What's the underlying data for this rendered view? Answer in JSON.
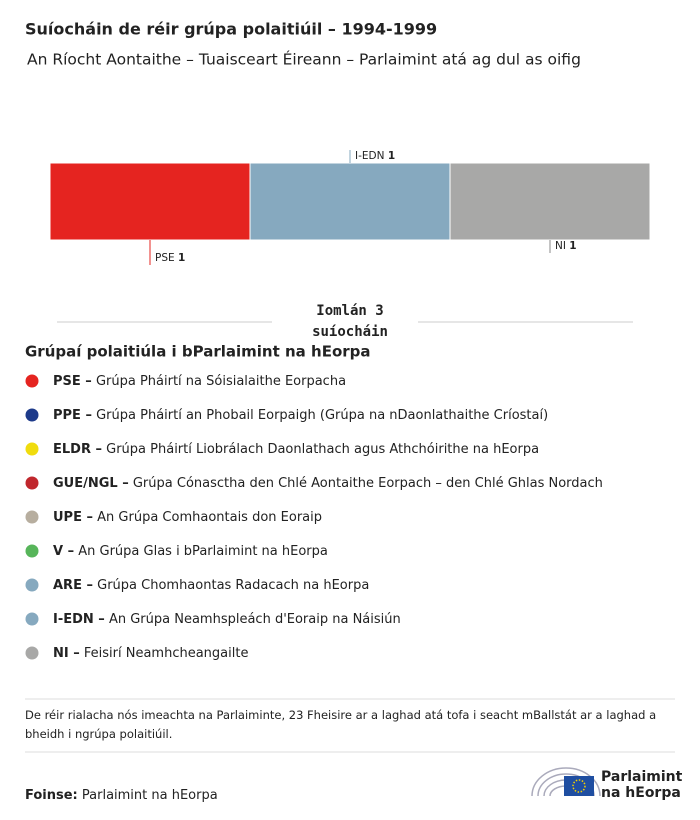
{
  "header": {
    "title": "Suíocháin de réir grúpa polaitiúil – 1994-1999",
    "subtitle": "An Ríocht Aontaithe – Tuaisceart Éireann – Parlaimint atá ag dul as oifig"
  },
  "chart_data": {
    "type": "stacked-bar",
    "series": [
      {
        "name": "PSE",
        "color": "#e52420",
        "values": [
          1
        ]
      },
      {
        "name": "I-EDN",
        "color": "#86a9bf",
        "values": [
          1
        ]
      },
      {
        "name": "NI",
        "color": "#a8a8a7",
        "values": [
          1
        ]
      }
    ],
    "xlim": [
      0,
      3
    ],
    "total_label": "Iomlán",
    "total": 3,
    "total_unit": "suíocháin"
  },
  "legend": {
    "title": "Grúpaí polaitiúla i bParlaimint na hEorpa",
    "items": [
      {
        "abbr": "PSE –",
        "name": "Grúpa Pháirtí na Sóisialaithe Eorpacha",
        "color": "#e52420"
      },
      {
        "abbr": "PPE –",
        "name": "Grúpa Pháirtí an Phobail Eorpaigh (Grúpa na nDaonlathaithe Críostaí)",
        "color": "#1d3a8a"
      },
      {
        "abbr": "ELDR –",
        "name": "Grúpa Pháirtí Liobrálach Daonlathach agus Athchóirithe na hEorpa",
        "color": "#f0dc0e"
      },
      {
        "abbr": "GUE/NGL –",
        "name": "Grúpa Cónasctha den Chlé Aontaithe Eorpach – den Chlé Ghlas Nordach",
        "color": "#c0272d"
      },
      {
        "abbr": "UPE –",
        "name": "An Grúpa Comhaontais don Eoraip",
        "color": "#b7ae9f"
      },
      {
        "abbr": "V –",
        "name": "An Grúpa Glas i bParlaimint na hEorpa",
        "color": "#57b55a"
      },
      {
        "abbr": "ARE –",
        "name": "Grúpa Chomhaontas Radacach na hEorpa",
        "color": "#86a9bf"
      },
      {
        "abbr": "I-EDN –",
        "name": "An Grúpa Neamhspleách d'Eoraip na Náisiún",
        "color": "#86a9bf"
      },
      {
        "abbr": "NI –",
        "name": "Feisirí Neamhcheangailte",
        "color": "#a8a8a7"
      }
    ]
  },
  "footnote": "De réir rialacha nós imeachta na Parlaiminte, 23 Fheisire ar a laghad atá tofa i seacht mBallstát ar a laghad a bheidh i ngrúpa polaitiúil.",
  "source": {
    "label": "Foinse:",
    "text": "Parlaimint na hEorpa"
  },
  "logo": {
    "line1": "Parlaimint",
    "line2": "na hEorpa"
  }
}
